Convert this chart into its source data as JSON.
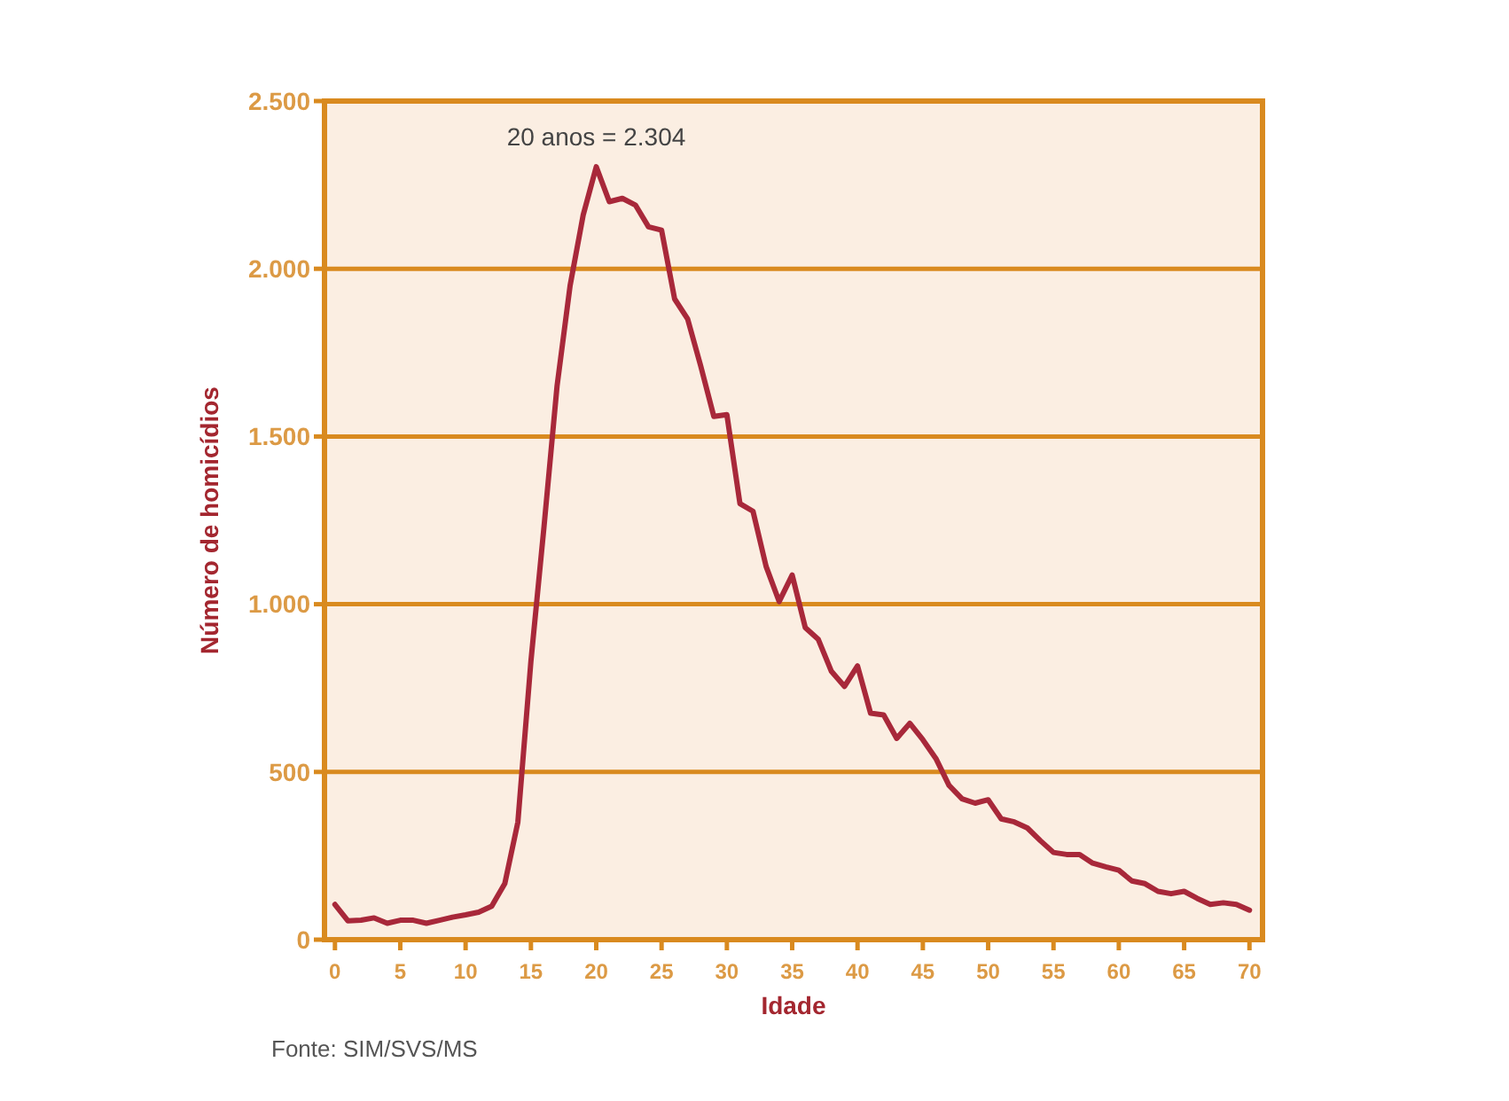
{
  "chart_data": {
    "type": "line",
    "xlabel": "Idade",
    "ylabel": "Número de homicídios",
    "x": [
      0,
      1,
      2,
      3,
      4,
      5,
      6,
      7,
      8,
      9,
      10,
      11,
      12,
      13,
      14,
      15,
      16,
      17,
      18,
      19,
      20,
      21,
      22,
      23,
      24,
      25,
      26,
      27,
      28,
      29,
      30,
      31,
      32,
      33,
      34,
      35,
      36,
      37,
      38,
      39,
      40,
      41,
      42,
      43,
      44,
      45,
      46,
      47,
      48,
      49,
      50,
      51,
      52,
      53,
      54,
      55,
      56,
      57,
      58,
      59,
      60,
      61,
      62,
      63,
      64,
      65,
      66,
      67,
      68,
      69,
      70
    ],
    "series": [
      {
        "color": "#a8283a",
        "values": [
          105,
          56,
          58,
          65,
          49,
          58,
          58,
          49,
          58,
          67,
          74,
          82,
          100,
          167,
          350,
          830,
          1230,
          1650,
          1950,
          2160,
          2304,
          2200,
          2210,
          2190,
          2125,
          2115,
          1910,
          1850,
          1710,
          1560,
          1565,
          1300,
          1277,
          1113,
          1008,
          1087,
          930,
          895,
          800,
          755,
          816,
          675,
          670,
          600,
          645,
          596,
          540,
          460,
          420,
          407,
          417,
          360,
          351,
          333,
          295,
          260,
          254,
          254,
          228,
          217,
          207,
          175,
          167,
          144,
          137,
          144,
          123,
          105,
          110,
          105,
          88
        ]
      }
    ],
    "xlim": [
      -0.8,
      71
    ],
    "xticks": [
      0,
      5,
      10,
      15,
      20,
      25,
      30,
      35,
      40,
      45,
      50,
      55,
      60,
      65,
      70
    ],
    "ylim": [
      0,
      2500
    ],
    "yticks": [
      0,
      {
        "value": 500,
        "label": "500"
      },
      {
        "value": 1000,
        "label": "1.000"
      },
      {
        "value": 1500,
        "label": "1.500"
      },
      {
        "value": 2000,
        "label": "2.000"
      },
      {
        "value": 2500,
        "label": "2.500"
      }
    ],
    "grid": "y",
    "marker": "none",
    "line_style": "solid",
    "annotations": [
      {
        "text": "20 anos = 2.304",
        "x": 20,
        "y": 2304
      },
      "Fonte: SIM/SVS/MS"
    ]
  }
}
